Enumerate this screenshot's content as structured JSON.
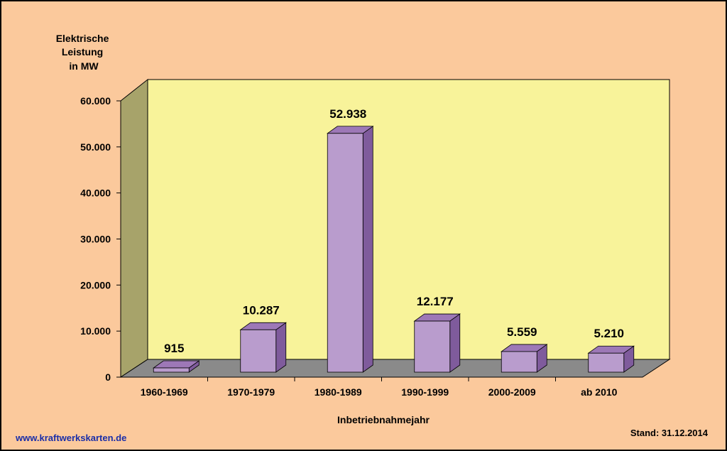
{
  "chart_data": {
    "type": "bar",
    "ylabel_lines": [
      "Elektrische",
      "Leistung",
      "in MW"
    ],
    "xlabel": "Inbetriebnahmejahr",
    "categories": [
      "1960-1969",
      "1970-1979",
      "1980-1989",
      "1990-1999",
      "2000-2009",
      "ab 2010"
    ],
    "values": [
      915,
      10287,
      52938,
      12177,
      5559,
      5210
    ],
    "value_labels": [
      "915",
      "10.287",
      "52.938",
      "12.177",
      "5.559",
      "5.210"
    ],
    "y_ticks": [
      0,
      10000,
      20000,
      30000,
      40000,
      50000,
      60000
    ],
    "y_tick_labels": [
      "0",
      "10.000",
      "20.000",
      "30.000",
      "40.000",
      "50.000",
      "60.000"
    ],
    "ylim": [
      0,
      60000
    ],
    "grid": false,
    "style": "3d-column",
    "colors": {
      "page_background": "#fbc99c",
      "back_wall": "#f8f39a",
      "side_wall": "#a7a36a",
      "floor": "#8a8a8a",
      "bar_front": "#b99ccd",
      "bar_top": "#9d78b7",
      "bar_side": "#7f5b9c",
      "frame": "#000000"
    }
  },
  "footer": {
    "website": "www.kraftwerkskarten.de",
    "stand": "Stand: 31.12.2014"
  }
}
